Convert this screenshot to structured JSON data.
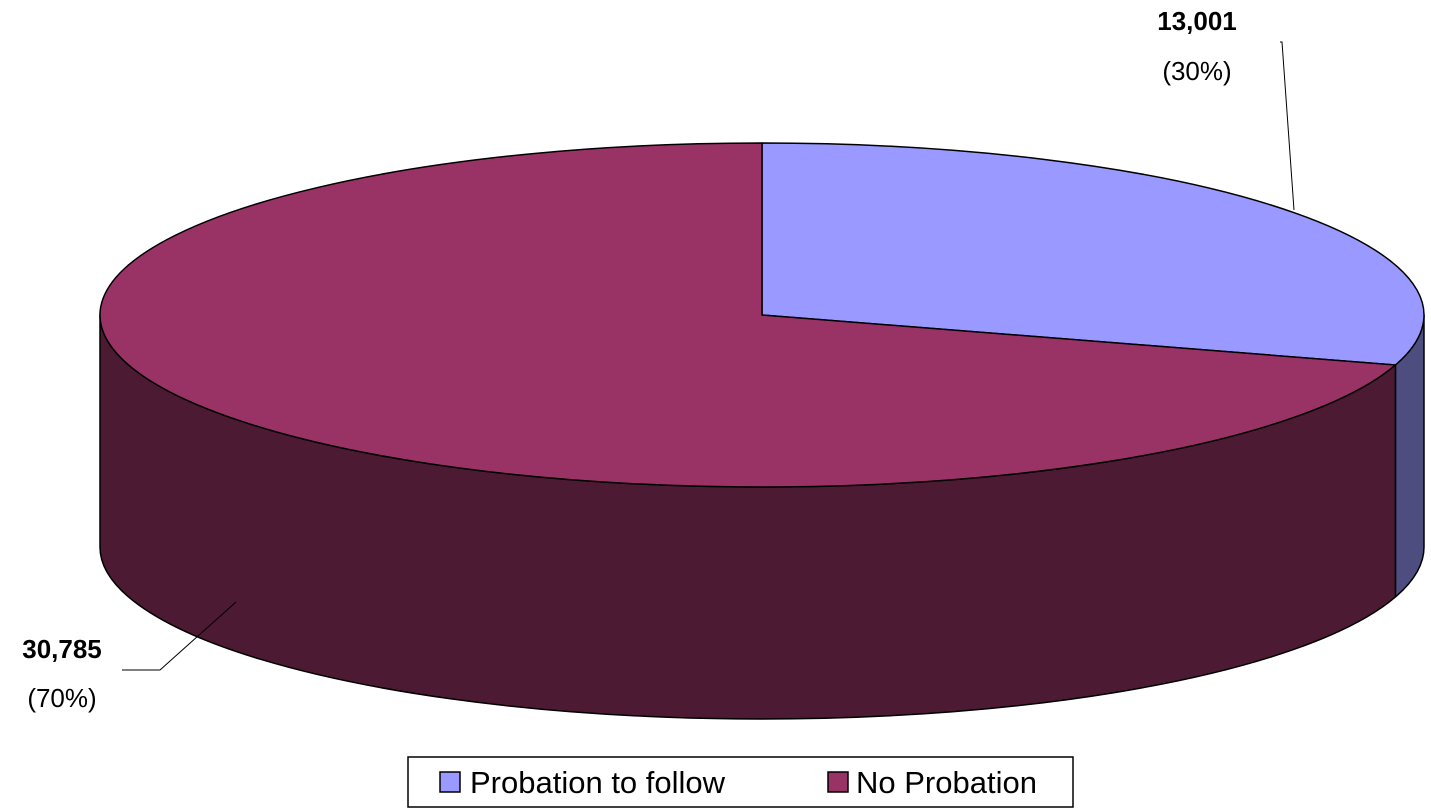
{
  "chart_data": {
    "type": "pie",
    "style": "3d",
    "title": "",
    "slices": [
      {
        "label": "Probation to follow",
        "value": 13001,
        "value_label": "13,001",
        "pct_label": "(30%)",
        "color": "#9999FF",
        "side_color": "#4D4D80"
      },
      {
        "label": "No Probation",
        "value": 30785,
        "value_label": "30,785",
        "pct_label": "(70%)",
        "color": "#993366",
        "side_color": "#4D1A33"
      }
    ],
    "legend": {
      "position": "bottom",
      "entries": [
        "Probation to follow",
        "No Probation"
      ]
    }
  }
}
